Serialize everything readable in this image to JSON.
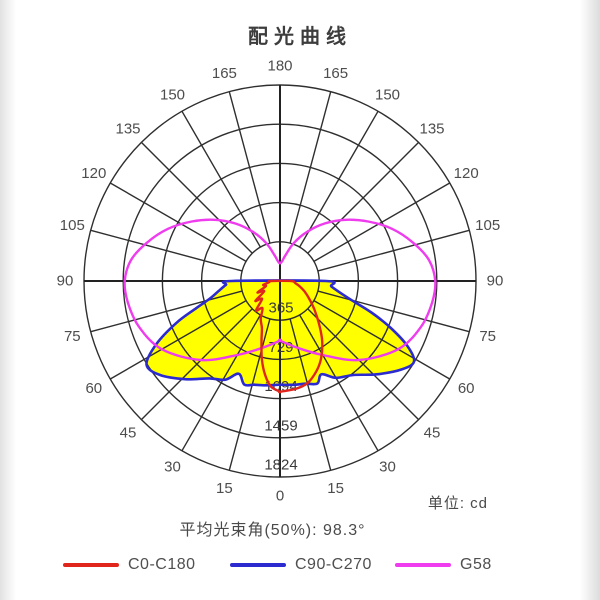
{
  "title": "配光曲线",
  "unit_label": "单位: cd",
  "beam_angle_label": "平均光束角(50%): 98.3°",
  "legend": [
    {
      "label": "C0-C180",
      "color": "#e0261c"
    },
    {
      "label": "C90-C270",
      "color": "#2b2bd0"
    },
    {
      "label": "G58",
      "color": "#ee3cee"
    }
  ],
  "colors": {
    "grid": "#2f2f2f",
    "axis": "#222222",
    "angle_label": "#4d4d4d",
    "ring_label": "#3a3a3a",
    "c0_c180": "#e0261c",
    "c90_c270": "#2b2bd0",
    "g58": "#ee3cee",
    "fill_yellow": "#ffff00",
    "background": "#ffffff"
  },
  "chart_data": {
    "type": "polar-photometric",
    "title": "配光曲线",
    "unit": "cd",
    "beam_angle_50pct_deg": 98.3,
    "angle_step_deg": 15,
    "angle_labels_deg": [
      0,
      15,
      30,
      45,
      60,
      75,
      90,
      105,
      120,
      135,
      150,
      165,
      180
    ],
    "ring_values_cd": [
      365,
      729,
      1094,
      1459,
      1824
    ],
    "series": [
      {
        "name": "C90-C270",
        "color": "#2b2bd0",
        "fill": "#ffff00",
        "points_right": [
          [
            0,
            965
          ],
          [
            8,
            975
          ],
          [
            14,
            985
          ],
          [
            20,
            1015
          ],
          [
            24,
            950
          ],
          [
            30,
            1040
          ],
          [
            38,
            1110
          ],
          [
            46,
            1250
          ],
          [
            54,
            1400
          ],
          [
            59,
            1455
          ],
          [
            63,
            1330
          ],
          [
            67,
            1120
          ],
          [
            71,
            900
          ],
          [
            75,
            690
          ],
          [
            79,
            570
          ],
          [
            84,
            480
          ],
          [
            90,
            430
          ]
        ],
        "points_left": [
          [
            0,
            965
          ],
          [
            8,
            980
          ],
          [
            14,
            995
          ],
          [
            19,
            1020
          ],
          [
            24,
            945
          ],
          [
            29,
            1050
          ],
          [
            36,
            1120
          ],
          [
            44,
            1270
          ],
          [
            52,
            1420
          ],
          [
            58,
            1465
          ],
          [
            63,
            1290
          ],
          [
            68,
            1040
          ],
          [
            72,
            820
          ],
          [
            76,
            670
          ],
          [
            81,
            575
          ],
          [
            86,
            505
          ],
          [
            90,
            450
          ]
        ]
      },
      {
        "name": "G58",
        "color": "#ee3cee",
        "fill": null,
        "points_right": [
          [
            0,
            555
          ],
          [
            15,
            645
          ],
          [
            30,
            795
          ],
          [
            45,
            1040
          ],
          [
            60,
            1270
          ],
          [
            72,
            1380
          ],
          [
            82,
            1430
          ],
          [
            90,
            1445
          ],
          [
            98,
            1400
          ],
          [
            106,
            1290
          ],
          [
            115,
            1150
          ],
          [
            124,
            990
          ],
          [
            133,
            835
          ],
          [
            142,
            680
          ],
          [
            151,
            525
          ],
          [
            160,
            375
          ],
          [
            168,
            245
          ],
          [
            174,
            185
          ],
          [
            180,
            165
          ]
        ],
        "points_left": [
          [
            0,
            555
          ],
          [
            15,
            645
          ],
          [
            30,
            795
          ],
          [
            45,
            1040
          ],
          [
            60,
            1270
          ],
          [
            72,
            1380
          ],
          [
            82,
            1430
          ],
          [
            90,
            1445
          ],
          [
            98,
            1400
          ],
          [
            106,
            1290
          ],
          [
            115,
            1150
          ],
          [
            124,
            990
          ],
          [
            133,
            835
          ],
          [
            142,
            680
          ],
          [
            151,
            525
          ],
          [
            160,
            375
          ],
          [
            168,
            245
          ],
          [
            174,
            185
          ],
          [
            180,
            165
          ]
        ]
      },
      {
        "name": "C0-C180",
        "color": "#e0261c",
        "fill": null,
        "points_right": [
          [
            0,
            1030
          ],
          [
            8,
            1015
          ],
          [
            15,
            985
          ],
          [
            22,
            905
          ],
          [
            28,
            815
          ],
          [
            35,
            685
          ],
          [
            42,
            545
          ],
          [
            50,
            420
          ],
          [
            58,
            325
          ],
          [
            66,
            255
          ],
          [
            74,
            195
          ],
          [
            82,
            145
          ],
          [
            90,
            105
          ]
        ],
        "points_left": [
          [
            0,
            1030
          ],
          [
            5,
            985
          ],
          [
            9,
            885
          ],
          [
            13,
            750
          ],
          [
            17,
            590
          ],
          [
            21,
            470
          ],
          [
            27,
            395
          ],
          [
            33,
            300
          ],
          [
            39,
            355
          ],
          [
            45,
            235
          ],
          [
            51,
            295
          ],
          [
            57,
            175
          ],
          [
            63,
            235
          ],
          [
            70,
            140
          ],
          [
            77,
            160
          ],
          [
            84,
            100
          ],
          [
            90,
            90
          ]
        ]
      }
    ]
  }
}
